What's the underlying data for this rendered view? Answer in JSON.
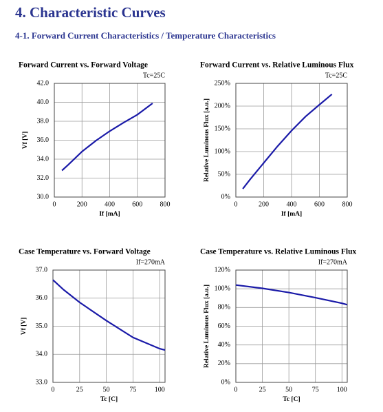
{
  "header": {
    "title": "4. Characteristic Curves",
    "subtitle": "4-1. Forward Current Characteristics / Temperature Characteristics"
  },
  "chart_data": [
    {
      "type": "line",
      "title": "Forward Current vs. Forward Voltage",
      "annotation": "Tc=25C",
      "x_label": "If [mA]",
      "y_label": "Vf [V]",
      "x": [
        55,
        100,
        200,
        300,
        400,
        500,
        600,
        710
      ],
      "values": [
        32.8,
        33.4,
        34.8,
        35.95,
        36.95,
        37.85,
        38.7,
        39.9
      ],
      "color": "#1a1aa8",
      "grid": true,
      "xlim": [
        0,
        800
      ],
      "xticks": [
        0,
        200,
        400,
        600,
        800
      ],
      "ylim": [
        30,
        42
      ],
      "yticks": [
        {
          "value": 30,
          "label": "30.0"
        },
        {
          "value": 32,
          "label": "32.0"
        },
        {
          "value": 34,
          "label": "34.0"
        },
        {
          "value": 36,
          "label": "36.0"
        },
        {
          "value": 38,
          "label": "38.0"
        },
        {
          "value": 40,
          "label": "40.0"
        },
        {
          "value": 42,
          "label": "42.0"
        }
      ]
    },
    {
      "type": "line",
      "title": "Forward Current vs. Relative Luminous Flux",
      "annotation": "Tc=25C",
      "x_label": "If [mA]",
      "y_label": "Relative Luminous Flux [a.u.]",
      "x": [
        50,
        100,
        200,
        300,
        400,
        500,
        600,
        690
      ],
      "values": [
        18,
        38,
        75,
        112,
        146,
        177,
        203,
        226
      ],
      "color": "#1a1aa8",
      "grid": true,
      "xlim": [
        0,
        800
      ],
      "xticks": [
        0,
        200,
        400,
        600,
        800
      ],
      "ylim": [
        0,
        250
      ],
      "yticks": [
        {
          "value": 0,
          "label": "0%"
        },
        {
          "value": 50,
          "label": "50%"
        },
        {
          "value": 100,
          "label": "100%"
        },
        {
          "value": 150,
          "label": "150%"
        },
        {
          "value": 200,
          "label": "200%"
        },
        {
          "value": 250,
          "label": "250%"
        }
      ]
    },
    {
      "type": "line",
      "title": "Case Temperature vs. Forward Voltage",
      "annotation": "If=270mA",
      "x_label": "Tc [C]",
      "y_label": "Vf [V]",
      "x": [
        0,
        10,
        25,
        50,
        75,
        100,
        105
      ],
      "values": [
        36.65,
        36.3,
        35.85,
        35.2,
        34.6,
        34.2,
        34.15
      ],
      "color": "#1a1aa8",
      "grid": true,
      "xlim": [
        0,
        105
      ],
      "xticks": [
        0,
        25,
        50,
        75,
        100
      ],
      "ylim": [
        33,
        37
      ],
      "yticks": [
        {
          "value": 33,
          "label": "33.0"
        },
        {
          "value": 34,
          "label": "34.0"
        },
        {
          "value": 35,
          "label": "35.0"
        },
        {
          "value": 36,
          "label": "36.0"
        },
        {
          "value": 37,
          "label": "37.0"
        }
      ]
    },
    {
      "type": "line",
      "title": "Case Temperature vs. Relative Luminous Flux",
      "annotation": "If=270mA",
      "x_label": "Tc [C]",
      "y_label": "Relative Luminous Flux [a.u.]",
      "x": [
        0,
        25,
        50,
        75,
        100,
        105
      ],
      "values": [
        104,
        100.5,
        96,
        90.5,
        84.5,
        83
      ],
      "color": "#1a1aa8",
      "grid": true,
      "xlim": [
        0,
        105
      ],
      "xticks": [
        0,
        25,
        50,
        75,
        100
      ],
      "ylim": [
        0,
        120
      ],
      "yticks": [
        {
          "value": 0,
          "label": "0%"
        },
        {
          "value": 20,
          "label": "20%"
        },
        {
          "value": 40,
          "label": "40%"
        },
        {
          "value": 60,
          "label": "60%"
        },
        {
          "value": 80,
          "label": "80%"
        },
        {
          "value": 100,
          "label": "100%"
        },
        {
          "value": 120,
          "label": "120%"
        }
      ]
    }
  ]
}
